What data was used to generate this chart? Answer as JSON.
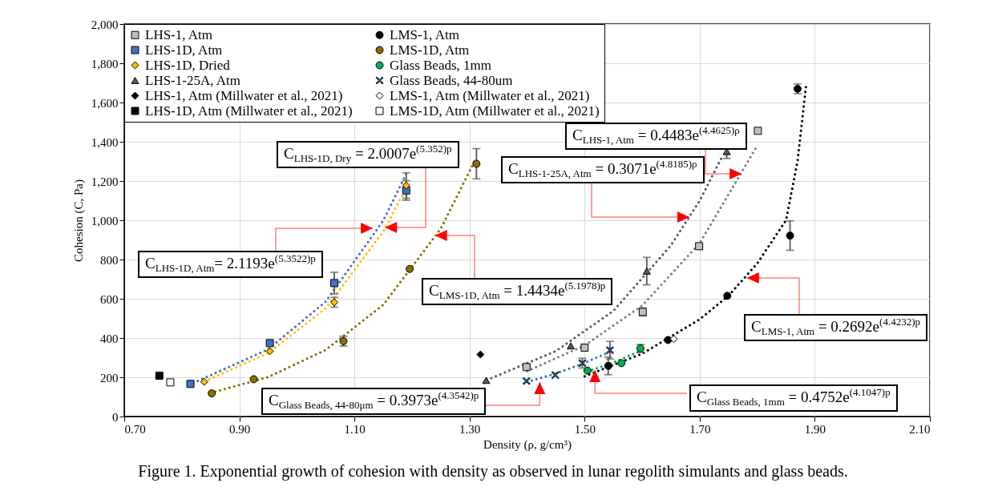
{
  "chart_data": {
    "type": "scatter",
    "xlabel": "Density (ρ, g/cm³)",
    "ylabel": "Cohesion (C, Pa)",
    "xlim": [
      0.7,
      2.1
    ],
    "ylim": [
      0,
      2000
    ],
    "xticks": [
      {
        "value": 0.7,
        "label": "0.70"
      },
      {
        "value": 0.9,
        "label": "0.90"
      },
      {
        "value": 1.1,
        "label": "1.10"
      },
      {
        "value": 1.3,
        "label": "1.30"
      },
      {
        "value": 1.5,
        "label": "1.50"
      },
      {
        "value": 1.7,
        "label": "1.70"
      },
      {
        "value": 1.9,
        "label": "1.90"
      },
      {
        "value": 2.1,
        "label": "2.10"
      }
    ],
    "yticks": [
      0,
      200,
      400,
      600,
      800,
      {
        "value": 1000,
        "label": "1,000"
      },
      {
        "value": 1200,
        "label": "1,200"
      },
      {
        "value": 1400,
        "label": "1,400"
      },
      {
        "value": 1600,
        "label": "1,600"
      },
      {
        "value": 1800,
        "label": "1,800"
      },
      {
        "value": 2000,
        "label": "2,000"
      }
    ],
    "grid": true,
    "legend": "top left",
    "series": [
      {
        "name": "LHS-1, Atm",
        "type": "scatter",
        "marker": "square",
        "color": "#bfbfbf",
        "x": [
          1.399,
          1.5,
          1.601,
          1.699,
          1.801
        ],
        "values": [
          252,
          351,
          533,
          868,
          1456
        ],
        "errors": [
          null,
          null,
          20,
          null,
          null
        ]
      },
      {
        "name": "LHS-1D, Atm",
        "type": "scatter",
        "marker": "square",
        "color": "#4472c4",
        "x": [
          0.815,
          0.953,
          1.065,
          1.19
        ],
        "values": [
          166,
          374,
          680,
          1152
        ],
        "errors": [
          null,
          null,
          55,
          50
        ]
      },
      {
        "name": "LHS-1D, Dried",
        "type": "scatter",
        "marker": "diamond",
        "color": "#ffc000",
        "x": [
          0.839,
          0.953,
          1.065,
          1.19
        ],
        "values": [
          177,
          333,
          582,
          1177
        ],
        "errors": [
          null,
          null,
          25,
          65
        ]
      },
      {
        "name": "LHS-1-25A, Atm",
        "type": "scatter",
        "marker": "triangle",
        "color": "#595959",
        "x": [
          1.329,
          1.476,
          1.608,
          1.747
        ],
        "values": [
          184,
          360,
          741,
          1350
        ],
        "errors": [
          null,
          null,
          70,
          35
        ]
      },
      {
        "name": "LHS-1, Atm (Millwater et al., 2021)",
        "type": "scatter",
        "marker": "diamond",
        "color": "#000000",
        "x": [
          1.319
        ],
        "values": [
          316
        ]
      },
      {
        "name": "LHS-1D, Atm (Millwater et al., 2021)",
        "type": "scatter",
        "marker": "square",
        "color": "#000000",
        "x": [
          0.761
        ],
        "values": [
          208
        ]
      },
      {
        "name": "LMS-1, Atm",
        "type": "scatter",
        "marker": "circle",
        "color": "#000000",
        "x": [
          1.541,
          1.645,
          1.748,
          1.857,
          1.87
        ],
        "values": [
          258,
          390,
          615,
          922,
          1670
        ],
        "errors": [
          45,
          null,
          null,
          75,
          25
        ]
      },
      {
        "name": "LMS-1D, Atm",
        "type": "scatter",
        "marker": "circle",
        "color": "#8c6d00",
        "x": [
          0.852,
          0.925,
          1.081,
          1.196,
          1.312
        ],
        "values": [
          118,
          190,
          384,
          752,
          1288
        ],
        "errors": [
          null,
          null,
          25,
          null,
          77
        ]
      },
      {
        "name": "Glass Beads, 1mm",
        "type": "scatter",
        "marker": "circle",
        "color": "#00b050",
        "x": [
          1.505,
          1.564,
          1.597
        ],
        "values": [
          234,
          272,
          347
        ],
        "errors": [
          null,
          null,
          20
        ]
      },
      {
        "name": "Glass Beads, 44-80um",
        "type": "scatter",
        "marker": "cross",
        "color": "#2e75b6",
        "x": [
          1.399,
          1.449,
          1.496,
          1.544
        ],
        "values": [
          181,
          211,
          272,
          338
        ],
        "errors": [
          null,
          null,
          25,
          45
        ]
      },
      {
        "name": "LMS-1, Atm (Millwater et al., 2021)",
        "type": "scatter",
        "marker": "diamond",
        "color": "#ffffff",
        "x": [
          1.655
        ],
        "values": [
          395
        ]
      },
      {
        "name": "LMS-1D, Atm (Millwater et al., 2021)",
        "type": "scatter",
        "marker": "square",
        "color": "#ffffff",
        "x": [
          0.78
        ],
        "values": [
          174
        ]
      },
      {
        "type": "line",
        "line_style": "dotted",
        "color": "#7f7f7f",
        "x": [
          1.4,
          1.5,
          1.6,
          1.7,
          1.8
        ],
        "values": [
          231,
          362,
          565,
          883,
          1380
        ]
      },
      {
        "type": "line",
        "line_style": "dotted",
        "color": "#000000",
        "x": [
          1.5,
          1.6,
          1.7,
          1.75,
          1.8,
          1.85,
          1.87,
          1.885
        ],
        "values": [
          205,
          320,
          495,
          615,
          780,
          1000,
          1300,
          1690
        ]
      },
      {
        "type": "line",
        "line_style": "dotted",
        "color": "#4472c4",
        "x": [
          0.82,
          0.95,
          1.05,
          1.15,
          1.19
        ],
        "values": [
          171,
          342,
          585,
          998,
          1236
        ]
      },
      {
        "type": "line",
        "line_style": "dotted",
        "color": "#8c6d00",
        "x": [
          0.85,
          0.95,
          1.05,
          1.15,
          1.25,
          1.31
        ],
        "values": [
          120,
          201,
          339,
          569,
          957,
          1308
        ]
      },
      {
        "type": "line",
        "line_style": "dotted",
        "color": "#ffc000",
        "x": [
          0.84,
          0.95,
          1.05,
          1.15,
          1.19
        ],
        "values": [
          179,
          323,
          551,
          942,
          1165
        ]
      },
      {
        "type": "line",
        "line_style": "dotted",
        "color": "#00b050",
        "x": [
          1.505,
          1.55,
          1.6
        ],
        "values": [
          229,
          275,
          338
        ]
      },
      {
        "type": "line",
        "line_style": "dotted",
        "color": "#595959",
        "x": [
          1.33,
          1.45,
          1.55,
          1.65,
          1.7,
          1.74
        ],
        "values": [
          186,
          333,
          538,
          872,
          1100,
          1330
        ]
      },
      {
        "type": "line",
        "line_style": "dotted",
        "color": "#2e75b6",
        "x": [
          1.4,
          1.45,
          1.5,
          1.545
        ],
        "values": [
          176,
          219,
          273,
          331
        ]
      }
    ],
    "annotations": [
      {
        "text": "C$_{LHS-1, Atm}$ = 0.4483e$^{(4.4625)ρ}$",
        "x": 1.773,
        "y": 1237
      },
      {
        "text": "C$_{LHS-1-25A, Atm}$ = 0.3071e$^{(4.8185)ρ}$",
        "x": 1.682,
        "y": 1016
      },
      {
        "text": "C$_{LHS-1D, Dry}$ = 2.0007e$^{(5.352)p}$",
        "x": 1.153,
        "y": 963
      },
      {
        "text": "C$_{LHS-1D, Atm}$= 2.1193e$^{(5.3522)p}$",
        "x": 1.132,
        "y": 959
      },
      {
        "text": "C$_{LMS-1D, Atm}$ = 1.4434e$^{(5.1978)p}$",
        "x": 1.24,
        "y": 922
      },
      {
        "text": "C$_{LMS-1, Atm}$ = 0.2692e$^{(4.4232)p}$",
        "x": 1.782,
        "y": 706
      },
      {
        "text": "C$_{Glass Beads, 44-80μm}$ = 0.3973e$^{(4.3542)p}$",
        "x": 1.422,
        "y": 176
      },
      {
        "text": "C$_{Glass Beads, 1mm}$ = 0.4752e$^{(4.1047)p}$",
        "x": 1.518,
        "y": 237
      },
      "Figure 1.  Exponential growth of cohesion with density as observed in lunar regolith simulants and glass beads."
    ]
  }
}
